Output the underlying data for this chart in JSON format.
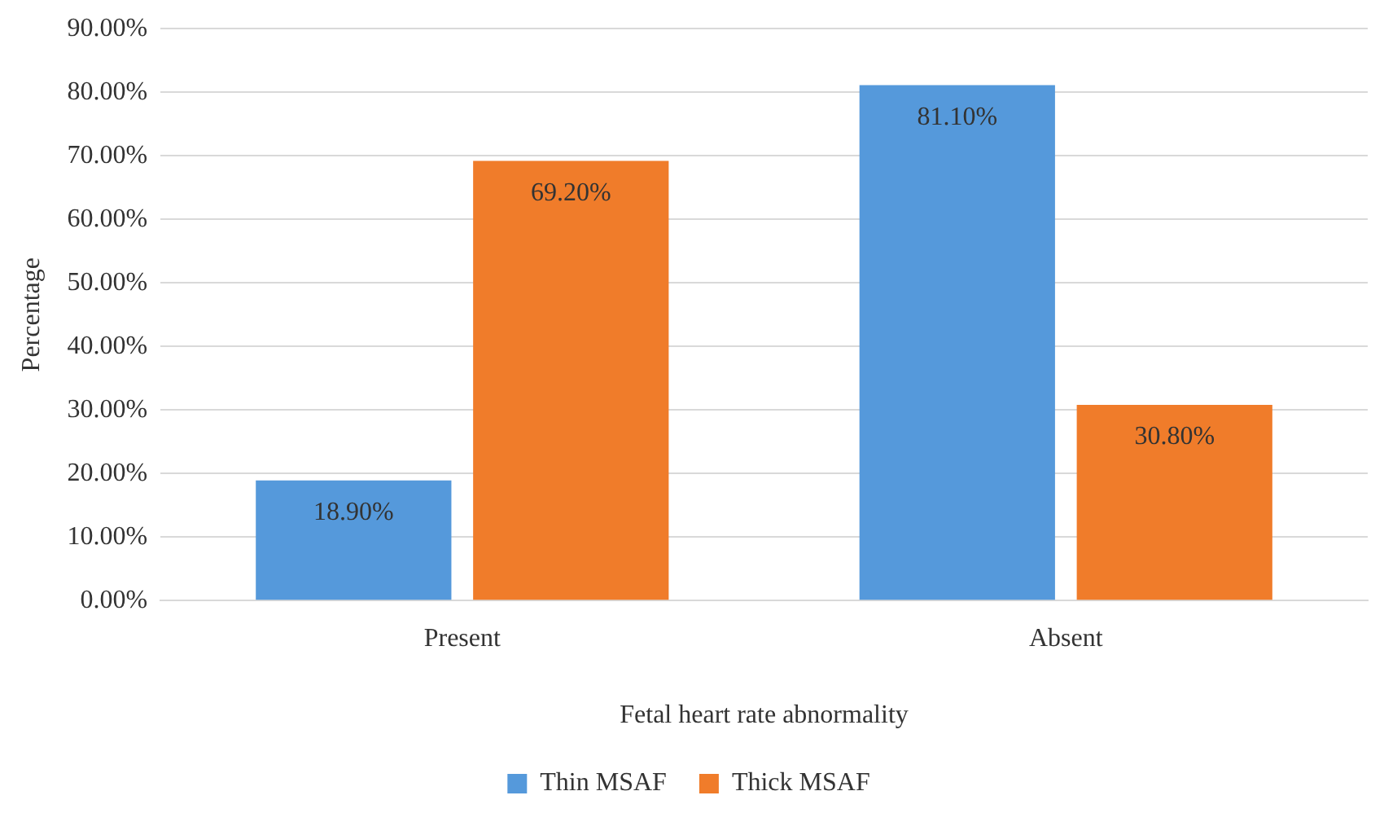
{
  "chart_data": {
    "type": "bar",
    "xlabel": "Fetal heart rate abnormality",
    "ylabel": "Percentage",
    "categories": [
      "Present",
      "Absent"
    ],
    "series": [
      {
        "name": "Thin MSAF",
        "color": "#5599db",
        "values": [
          18.9,
          81.1
        ],
        "value_labels": [
          "18.90%",
          "81.10%"
        ]
      },
      {
        "name": "Thick MSAF",
        "color": "#f07c2a",
        "values": [
          69.2,
          30.8
        ],
        "value_labels": [
          "69.20%",
          "30.80%"
        ]
      }
    ],
    "ylim": [
      0,
      90
    ],
    "yticks": [
      {
        "value": 0,
        "label": "0.00%"
      },
      {
        "value": 10,
        "label": "10.00%"
      },
      {
        "value": 20,
        "label": "20.00%"
      },
      {
        "value": 30,
        "label": "30.00%"
      },
      {
        "value": 40,
        "label": "40.00%"
      },
      {
        "value": 50,
        "label": "50.00%"
      },
      {
        "value": 60,
        "label": "60.00%"
      },
      {
        "value": 70,
        "label": "70.00%"
      },
      {
        "value": 80,
        "label": "80.00%"
      },
      {
        "value": 90,
        "label": "90.00%"
      }
    ],
    "grid": "y",
    "legend": "bottom"
  }
}
